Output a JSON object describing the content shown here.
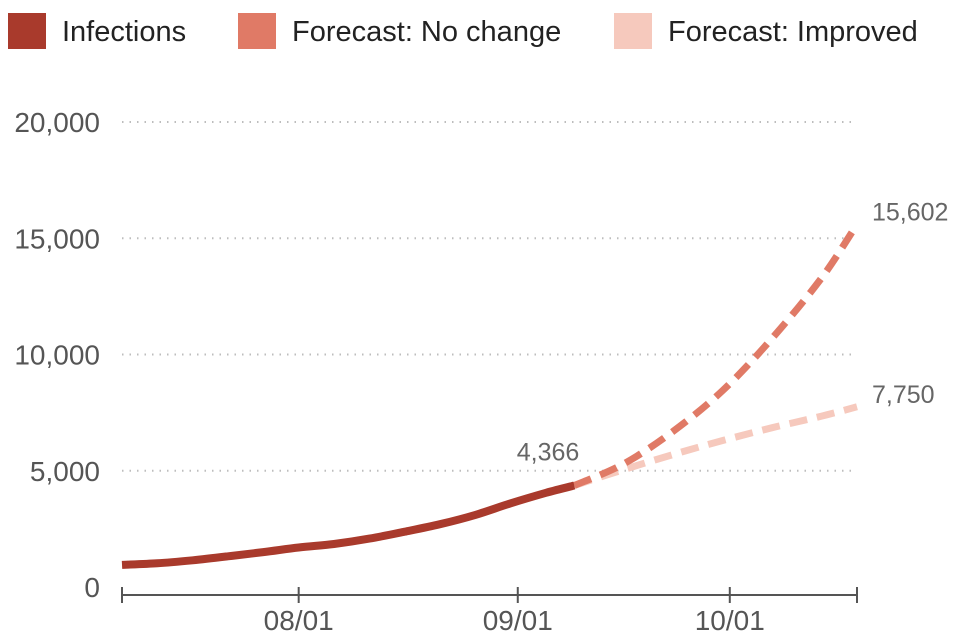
{
  "chart_data": {
    "type": "line",
    "title": "",
    "xlabel": "",
    "ylabel": "",
    "ylim": [
      0,
      20000
    ],
    "xlim": [
      "2020-07-07",
      "2020-10-19"
    ],
    "y_ticks": [
      0,
      5000,
      10000,
      15000,
      20000
    ],
    "y_tick_labels": [
      "0",
      "5,000",
      "10,000",
      "15,000",
      "20,000"
    ],
    "x_ticks": [
      "2020-08-01",
      "2020-09-01",
      "2020-10-01"
    ],
    "x_tick_labels": [
      "08/01",
      "09/01",
      "10/01"
    ],
    "grid": "horizontal dotted",
    "legend_position": "top",
    "series": [
      {
        "name": "Infections",
        "color": "#a93a2c",
        "style": "solid",
        "x": [
          "2020-07-07",
          "2020-07-12",
          "2020-07-17",
          "2020-07-22",
          "2020-07-27",
          "2020-08-01",
          "2020-08-06",
          "2020-08-11",
          "2020-08-16",
          "2020-08-21",
          "2020-08-26",
          "2020-08-31",
          "2020-09-05",
          "2020-09-09"
        ],
        "y": [
          950,
          1020,
          1150,
          1320,
          1500,
          1700,
          1850,
          2080,
          2380,
          2700,
          3100,
          3600,
          4050,
          4366
        ]
      },
      {
        "name": "Forecast: No change",
        "color": "#e07a66",
        "style": "dashed",
        "x": [
          "2020-09-09",
          "2020-09-16",
          "2020-09-23",
          "2020-09-30",
          "2020-10-07",
          "2020-10-14",
          "2020-10-19"
        ],
        "y": [
          4366,
          5300,
          6700,
          8450,
          10700,
          13300,
          15602
        ]
      },
      {
        "name": "Forecast: Improved",
        "color": "#f6c9bd",
        "style": "dashed",
        "x": [
          "2020-09-09",
          "2020-09-16",
          "2020-09-23",
          "2020-09-30",
          "2020-10-07",
          "2020-10-14",
          "2020-10-19"
        ],
        "y": [
          4366,
          5050,
          5700,
          6300,
          6850,
          7350,
          7750
        ]
      }
    ],
    "annotations": [
      {
        "text": "4,366",
        "series": "Infections",
        "at": "end"
      },
      {
        "text": "15,602",
        "series": "Forecast: No change",
        "at": "end"
      },
      {
        "text": "7,750",
        "series": "Forecast: Improved",
        "at": "end"
      }
    ]
  }
}
